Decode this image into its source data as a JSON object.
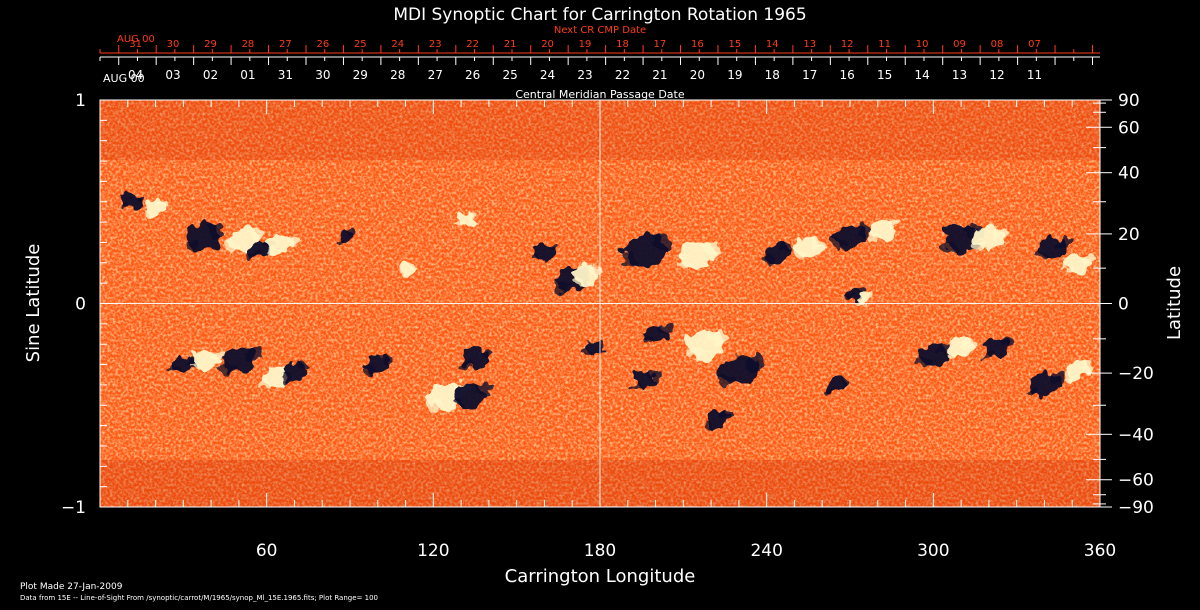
{
  "chart_data": {
    "type": "heatmap",
    "title": "MDI Synoptic Chart for Carrington Rotation 1965",
    "xlabel": "Carrington Longitude",
    "ylabel_left": "Sine Latitude",
    "ylabel_right": "Latitude",
    "xlim": [
      0,
      360
    ],
    "ylim": [
      -1,
      1
    ],
    "x_ticks": [
      60,
      120,
      180,
      240,
      300,
      360
    ],
    "x_minor_tick_step": 10,
    "y_left_ticks": [
      {
        "value": 1,
        "label": "1"
      },
      {
        "value": 0,
        "label": "0"
      },
      {
        "value": -1,
        "label": "−1"
      }
    ],
    "y_left_minor_tick_step": 0.1,
    "y_right_ticks": [
      {
        "deg": 90,
        "label": "90"
      },
      {
        "deg": 60,
        "label": "60"
      },
      {
        "deg": 40,
        "label": "40"
      },
      {
        "deg": 20,
        "label": "20"
      },
      {
        "deg": 0,
        "label": "0"
      },
      {
        "deg": -20,
        "label": "−20"
      },
      {
        "deg": -40,
        "label": "−40"
      },
      {
        "deg": -60,
        "label": "−60"
      },
      {
        "deg": -90,
        "label": "−90"
      }
    ],
    "y_right_minor_ticks_deg": [
      80,
      70,
      50,
      30,
      10,
      -10,
      -30,
      -50,
      -70,
      -80
    ],
    "top_axis_cmp": {
      "label": "Central Meridian Passage Date",
      "start_label": "AUG 00",
      "dates": [
        "04",
        "03",
        "02",
        "01",
        "31",
        "30",
        "29",
        "28",
        "27",
        "26",
        "25",
        "24",
        "23",
        "22",
        "21",
        "20",
        "19",
        "18",
        "17",
        "16",
        "15",
        "14",
        "13",
        "12",
        "11"
      ]
    },
    "top_axis_next_cr": {
      "label": "Next CR CMP Date",
      "start_label": "AUG 00",
      "dates": [
        "31",
        "30",
        "29",
        "28",
        "27",
        "26",
        "25",
        "24",
        "23",
        "22",
        "21",
        "20",
        "19",
        "18",
        "17",
        "16",
        "15",
        "14",
        "13",
        "12",
        "11",
        "10",
        "09",
        "08",
        "07"
      ]
    },
    "reference_lines": {
      "x": 180,
      "y": 0
    },
    "colormap": {
      "background": "#ff5a14",
      "positive": "#fff6c8",
      "negative": "#0a0a2a"
    },
    "plot_range": 100,
    "magnetic_regions": [
      {
        "lon": 37,
        "sinlat": 0.33,
        "polarity": "negative",
        "size": 1.2
      },
      {
        "lon": 52,
        "sinlat": 0.31,
        "polarity": "positive",
        "size": 1.1
      },
      {
        "lon": 58,
        "sinlat": 0.27,
        "polarity": "negative",
        "size": 0.8
      },
      {
        "lon": 65,
        "sinlat": 0.29,
        "polarity": "positive",
        "size": 0.9
      },
      {
        "lon": 88,
        "sinlat": 0.33,
        "polarity": "negative",
        "size": 0.6
      },
      {
        "lon": 110,
        "sinlat": 0.17,
        "polarity": "positive",
        "size": 0.5
      },
      {
        "lon": 132,
        "sinlat": 0.41,
        "polarity": "positive",
        "size": 0.7
      },
      {
        "lon": 160,
        "sinlat": 0.25,
        "polarity": "negative",
        "size": 0.8
      },
      {
        "lon": 170,
        "sinlat": 0.12,
        "polarity": "negative",
        "size": 1.1
      },
      {
        "lon": 175,
        "sinlat": 0.14,
        "polarity": "positive",
        "size": 0.9
      },
      {
        "lon": 196,
        "sinlat": 0.26,
        "polarity": "negative",
        "size": 1.5
      },
      {
        "lon": 215,
        "sinlat": 0.24,
        "polarity": "positive",
        "size": 1.3
      },
      {
        "lon": 244,
        "sinlat": 0.25,
        "polarity": "negative",
        "size": 0.9
      },
      {
        "lon": 255,
        "sinlat": 0.27,
        "polarity": "positive",
        "size": 0.9
      },
      {
        "lon": 270,
        "sinlat": 0.33,
        "polarity": "negative",
        "size": 1.1
      },
      {
        "lon": 282,
        "sinlat": 0.36,
        "polarity": "positive",
        "size": 1.0
      },
      {
        "lon": 272,
        "sinlat": 0.05,
        "polarity": "negative",
        "size": 0.6
      },
      {
        "lon": 275,
        "sinlat": 0.03,
        "polarity": "positive",
        "size": 0.5
      },
      {
        "lon": 310,
        "sinlat": 0.32,
        "polarity": "negative",
        "size": 1.3
      },
      {
        "lon": 320,
        "sinlat": 0.32,
        "polarity": "positive",
        "size": 1.1
      },
      {
        "lon": 343,
        "sinlat": 0.27,
        "polarity": "negative",
        "size": 1.0
      },
      {
        "lon": 352,
        "sinlat": 0.2,
        "polarity": "positive",
        "size": 0.8
      },
      {
        "lon": 11,
        "sinlat": 0.5,
        "polarity": "negative",
        "size": 0.7
      },
      {
        "lon": 20,
        "sinlat": 0.47,
        "polarity": "positive",
        "size": 0.7
      },
      {
        "lon": 30,
        "sinlat": -0.3,
        "polarity": "negative",
        "size": 0.8
      },
      {
        "lon": 38,
        "sinlat": -0.28,
        "polarity": "positive",
        "size": 1.0
      },
      {
        "lon": 50,
        "sinlat": -0.28,
        "polarity": "negative",
        "size": 1.2
      },
      {
        "lon": 63,
        "sinlat": -0.36,
        "polarity": "positive",
        "size": 0.9
      },
      {
        "lon": 70,
        "sinlat": -0.33,
        "polarity": "negative",
        "size": 0.8
      },
      {
        "lon": 100,
        "sinlat": -0.3,
        "polarity": "negative",
        "size": 0.9
      },
      {
        "lon": 125,
        "sinlat": -0.46,
        "polarity": "positive",
        "size": 1.3
      },
      {
        "lon": 133,
        "sinlat": -0.45,
        "polarity": "negative",
        "size": 1.1
      },
      {
        "lon": 135,
        "sinlat": -0.27,
        "polarity": "negative",
        "size": 1.0
      },
      {
        "lon": 178,
        "sinlat": -0.22,
        "polarity": "negative",
        "size": 0.6
      },
      {
        "lon": 200,
        "sinlat": -0.15,
        "polarity": "negative",
        "size": 0.8
      },
      {
        "lon": 196,
        "sinlat": -0.38,
        "polarity": "negative",
        "size": 0.8
      },
      {
        "lon": 218,
        "sinlat": -0.2,
        "polarity": "positive",
        "size": 1.3
      },
      {
        "lon": 230,
        "sinlat": -0.33,
        "polarity": "negative",
        "size": 1.4
      },
      {
        "lon": 222,
        "sinlat": -0.57,
        "polarity": "negative",
        "size": 0.8
      },
      {
        "lon": 265,
        "sinlat": -0.4,
        "polarity": "negative",
        "size": 0.7
      },
      {
        "lon": 300,
        "sinlat": -0.25,
        "polarity": "negative",
        "size": 1.0
      },
      {
        "lon": 310,
        "sinlat": -0.22,
        "polarity": "positive",
        "size": 0.9
      },
      {
        "lon": 323,
        "sinlat": -0.22,
        "polarity": "negative",
        "size": 0.9
      },
      {
        "lon": 340,
        "sinlat": -0.4,
        "polarity": "negative",
        "size": 1.1
      },
      {
        "lon": 352,
        "sinlat": -0.33,
        "polarity": "positive",
        "size": 0.8
      }
    ]
  },
  "footer": {
    "plot_made": "Plot Made 27-Jan-2009",
    "data_source": "Data from 15E -- Line-of-Sight From /synoptic/carrot/M/1965/synop_Ml_15E.1965.fits; Plot Range= 100"
  }
}
